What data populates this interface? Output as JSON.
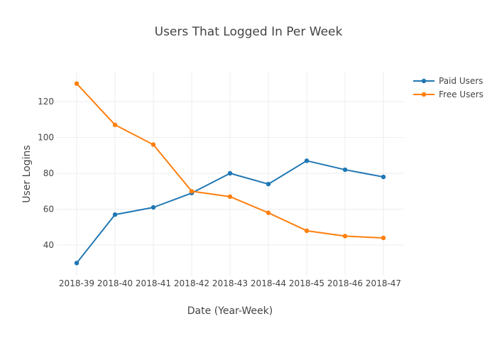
{
  "chart_data": {
    "type": "line",
    "title": "Users That Logged In Per Week",
    "xlabel": "Date (Year-Week)",
    "ylabel": "User Logins",
    "categories": [
      "2018-39",
      "2018-40",
      "2018-41",
      "2018-42",
      "2018-43",
      "2018-44",
      "2018-45",
      "2018-46",
      "2018-47"
    ],
    "yticks": [
      40,
      60,
      80,
      100,
      120
    ],
    "ylim": [
      23,
      137
    ],
    "grid": true,
    "legend_position": "top-right",
    "series": [
      {
        "name": "Paid Users",
        "color": "#1f77b4",
        "values": [
          30,
          57,
          61,
          69,
          80,
          74,
          87,
          82,
          78
        ]
      },
      {
        "name": "Free Users",
        "color": "#ff7f0e",
        "values": [
          130,
          107,
          96,
          70,
          67,
          58,
          48,
          45,
          44
        ]
      }
    ]
  }
}
